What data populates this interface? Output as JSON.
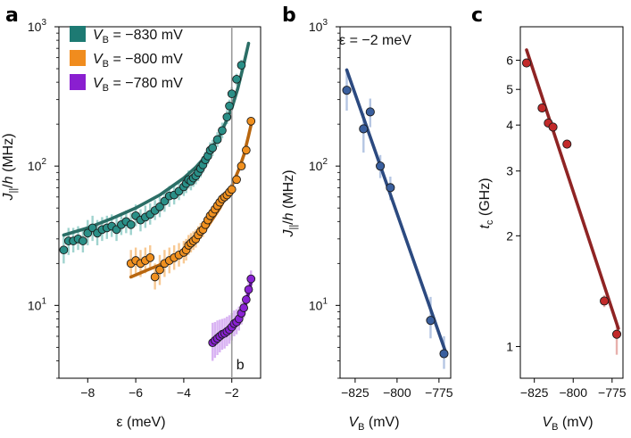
{
  "chart_data": [
    {
      "type": "scatter",
      "panel_label": "a",
      "xlabel": "ε (meV)",
      "ylabel": "J||/h (MHz)",
      "yscale": "log",
      "xlim": [
        -9.2,
        -0.8
      ],
      "ylim": [
        3,
        1000
      ],
      "xticks": [
        -8,
        -6,
        -4,
        -2
      ],
      "xtick_labels": [
        "−8",
        "−6",
        "−4",
        "−2"
      ],
      "yticks": [
        10,
        100,
        1000
      ],
      "ytick_labels": [
        "10",
        "10",
        "10"
      ],
      "ytick_exponents": [
        "1",
        "2",
        "3"
      ],
      "vline": {
        "x": -2.0,
        "label": "b"
      },
      "legend": [
        {
          "name": "VB = −830 mV",
          "label_main": "V",
          "label_sub": "B",
          "label_rest": " = −830 mV",
          "color": "#1d7a73"
        },
        {
          "name": "VB = −800 mV",
          "label_main": "V",
          "label_sub": "B",
          "label_rest": " = −800 mV",
          "color": "#f08c1e"
        },
        {
          "name": "VB = −780 mV",
          "label_main": "V",
          "label_sub": "B",
          "label_rest": " = −780 mV",
          "color": "#8a1fd0"
        }
      ],
      "series": [
        {
          "name": "VB = −830 mV",
          "color": "#2a8f87",
          "fit_color": "#2b6e66",
          "light": "#9fd3ce",
          "x": [
            -9.0,
            -8.8,
            -8.6,
            -8.4,
            -8.2,
            -8.0,
            -7.8,
            -7.6,
            -7.4,
            -7.2,
            -7.0,
            -6.8,
            -6.6,
            -6.4,
            -6.2,
            -6.0,
            -5.8,
            -5.6,
            -5.4,
            -5.2,
            -5.0,
            -4.8,
            -4.6,
            -4.4,
            -4.2,
            -4.0,
            -3.9,
            -3.8,
            -3.7,
            -3.6,
            -3.5,
            -3.4,
            -3.3,
            -3.2,
            -3.1,
            -3.0,
            -2.9,
            -2.8,
            -2.6,
            -2.4,
            -2.2,
            -2.1,
            -2.0,
            -1.8,
            -1.6
          ],
          "y": [
            25,
            29,
            29,
            30,
            29,
            33,
            36,
            33,
            35,
            36,
            37,
            35,
            38,
            40,
            38,
            44,
            41,
            43,
            45,
            48,
            51,
            56,
            61,
            62,
            66,
            71,
            75,
            80,
            78,
            82,
            85,
            90,
            96,
            102,
            111,
            118,
            130,
            135,
            155,
            180,
            225,
            270,
            330,
            420,
            530
          ],
          "err_low": [
            20,
            23,
            24,
            25,
            24,
            27,
            29,
            27,
            29,
            30,
            31,
            29,
            32,
            33,
            32,
            37,
            34,
            36,
            38,
            41,
            43,
            47,
            51,
            53,
            57,
            61,
            64,
            69,
            67,
            71,
            74,
            78,
            83,
            89,
            97,
            103,
            113,
            118,
            137,
            158,
            200,
            240,
            295,
            380,
            480
          ],
          "err_high": [
            32,
            36,
            36,
            37,
            36,
            41,
            44,
            41,
            43,
            44,
            45,
            43,
            46,
            48,
            46,
            53,
            49,
            52,
            54,
            57,
            60,
            66,
            72,
            73,
            77,
            83,
            87,
            93,
            91,
            95,
            98,
            104,
            110,
            117,
            127,
            135,
            148,
            154,
            175,
            205,
            252,
            300,
            368,
            460,
            580
          ],
          "fit_x": [
            -9.0,
            -8.0,
            -7.0,
            -6.0,
            -5.0,
            -4.0,
            -3.5,
            -3.0,
            -2.5,
            -2.0,
            -1.75,
            -1.5,
            -1.3
          ],
          "fit_y": [
            32,
            36,
            42,
            50,
            62,
            82,
            98,
            122,
            165,
            260,
            360,
            540,
            760
          ]
        },
        {
          "name": "VB = −800 mV",
          "color": "#f0901f",
          "fit_color": "#b8660f",
          "light": "#f8c993",
          "x": [
            -6.2,
            -6.0,
            -5.8,
            -5.6,
            -5.4,
            -5.2,
            -5.0,
            -4.8,
            -4.6,
            -4.4,
            -4.2,
            -4.0,
            -3.9,
            -3.8,
            -3.7,
            -3.6,
            -3.5,
            -3.4,
            -3.3,
            -3.2,
            -3.1,
            -3.0,
            -2.9,
            -2.8,
            -2.7,
            -2.6,
            -2.5,
            -2.4,
            -2.3,
            -2.2,
            -2.1,
            -2.0,
            -1.8,
            -1.6,
            -1.4,
            -1.2
          ],
          "y": [
            20,
            21,
            20,
            21,
            22,
            16,
            18,
            20,
            21,
            22,
            23,
            24,
            25,
            27,
            28,
            29,
            30,
            32,
            34,
            35,
            38,
            41,
            44,
            46,
            49,
            52,
            55,
            58,
            60,
            62,
            65,
            68,
            80,
            100,
            130,
            210
          ],
          "err_low": [
            16,
            17,
            16,
            17,
            18,
            13,
            14,
            16,
            17,
            18,
            19,
            20,
            21,
            23,
            24,
            25,
            26,
            28,
            30,
            31,
            34,
            37,
            40,
            42,
            45,
            48,
            51,
            54,
            56,
            58,
            61,
            64,
            75,
            94,
            122,
            195
          ],
          "err_high": [
            25,
            26,
            25,
            26,
            27,
            20,
            23,
            25,
            26,
            27,
            28,
            29,
            30,
            32,
            33,
            34,
            35,
            37,
            39,
            40,
            43,
            46,
            49,
            51,
            54,
            57,
            60,
            63,
            65,
            67,
            70,
            73,
            86,
            107,
            139,
            225
          ],
          "fit_x": [
            -6.2,
            -5.5,
            -5.0,
            -4.5,
            -4.0,
            -3.5,
            -3.0,
            -2.5,
            -2.0,
            -1.7,
            -1.5,
            -1.3,
            -1.15
          ],
          "fit_y": [
            16,
            18,
            19.5,
            21.5,
            24.5,
            29,
            37,
            50,
            72,
            95,
            120,
            165,
            215
          ]
        },
        {
          "name": "VB = −780 mV",
          "color": "#8a22d4",
          "fit_color": "#5a1090",
          "light": "#d9b3f3",
          "x": [
            -2.8,
            -2.7,
            -2.6,
            -2.5,
            -2.4,
            -2.3,
            -2.2,
            -2.1,
            -2.0,
            -1.9,
            -1.8,
            -1.7,
            -1.6,
            -1.5,
            -1.4,
            -1.3,
            -1.2
          ],
          "y": [
            5.4,
            5.6,
            5.8,
            6.0,
            6.2,
            6.3,
            6.5,
            6.7,
            7.0,
            7.4,
            7.6,
            8.0,
            8.8,
            9.6,
            11.0,
            13.0,
            15.5
          ],
          "err_low": [
            4.0,
            4.2,
            4.4,
            4.6,
            4.8,
            4.9,
            5.1,
            5.3,
            5.6,
            6.0,
            6.2,
            6.6,
            7.3,
            8.1,
            9.4,
            11.2,
            13.4
          ],
          "err_high": [
            7.5,
            7.6,
            7.8,
            7.9,
            8.0,
            8.1,
            8.3,
            8.5,
            8.8,
            9.2,
            9.4,
            9.8,
            10.6,
            11.4,
            12.9,
            15.0,
            17.8
          ],
          "fit_x": [
            -2.85,
            -2.5,
            -2.0,
            -1.6,
            -1.4,
            -1.2
          ],
          "fit_y": [
            5.3,
            5.9,
            7.0,
            8.7,
            10.5,
            14.5
          ]
        }
      ]
    },
    {
      "type": "scatter",
      "panel_label": "b",
      "annotation": "ε = −2 meV",
      "xlabel": "VB (mV)",
      "xlabel_main": "V",
      "xlabel_sub": "B",
      "xlabel_rest": " (mV)",
      "ylabel": "J||/h (MHz)",
      "yscale": "log",
      "xlim": [
        -834,
        -768
      ],
      "ylim": [
        3,
        1000
      ],
      "xticks": [
        -825,
        -800,
        -775
      ],
      "xtick_labels": [
        "−825",
        "−800",
        "−775"
      ],
      "yticks": [
        10,
        100,
        1000
      ],
      "ytick_labels": [
        "10",
        "10",
        "10"
      ],
      "ytick_exponents": [
        "1",
        "2",
        "3"
      ],
      "series": [
        {
          "name": "ε = −2 meV",
          "color": "#3a5f9e",
          "fit_color": "#2c4a80",
          "light": "#b5c6e3",
          "x": [
            -830,
            -820,
            -816,
            -810,
            -804,
            -780,
            -772
          ],
          "y": [
            350,
            185,
            245,
            100,
            70,
            7.8,
            4.5
          ],
          "err_low": [
            250,
            125,
            190,
            82,
            57,
            5.8,
            3.5
          ],
          "err_high": [
            470,
            240,
            305,
            120,
            84,
            11.5,
            6.0
          ],
          "fit_x": [
            -830,
            -771
          ],
          "fit_y": [
            490,
            4.6
          ]
        }
      ]
    },
    {
      "type": "scatter",
      "panel_label": "c",
      "xlabel": "VB (mV)",
      "xlabel_main": "V",
      "xlabel_sub": "B",
      "xlabel_rest": " (mV)",
      "ylabel": "tc (GHz)",
      "ylabel_main": "t",
      "ylabel_sub": "c",
      "ylabel_rest": " (GHz)",
      "yscale": "log",
      "xlim": [
        -834,
        -768
      ],
      "ylim": [
        0.82,
        7.4
      ],
      "xticks": [
        -825,
        -800,
        -775
      ],
      "xtick_labels": [
        "−825",
        "−800",
        "−775"
      ],
      "yticks": [
        1,
        2,
        3,
        4,
        5,
        6
      ],
      "ytick_labels": [
        "1",
        "2",
        "3",
        "4",
        "5",
        "6"
      ],
      "series": [
        {
          "name": "tc",
          "color": "#c22a2a",
          "fit_color": "#8f2424",
          "light": "#e8b1ad",
          "x": [
            -830,
            -820,
            -816,
            -813,
            -804,
            -780,
            -772
          ],
          "y": [
            5.9,
            4.45,
            4.05,
            3.95,
            3.55,
            1.33,
            1.08
          ],
          "err_low": [
            5.8,
            4.4,
            4.0,
            3.9,
            3.5,
            1.28,
            0.95
          ],
          "err_high": [
            6.0,
            4.5,
            4.1,
            4.0,
            3.6,
            1.38,
            1.16
          ],
          "fit_x": [
            -830,
            -771
          ],
          "fit_y": [
            6.4,
            1.12
          ]
        }
      ]
    }
  ]
}
